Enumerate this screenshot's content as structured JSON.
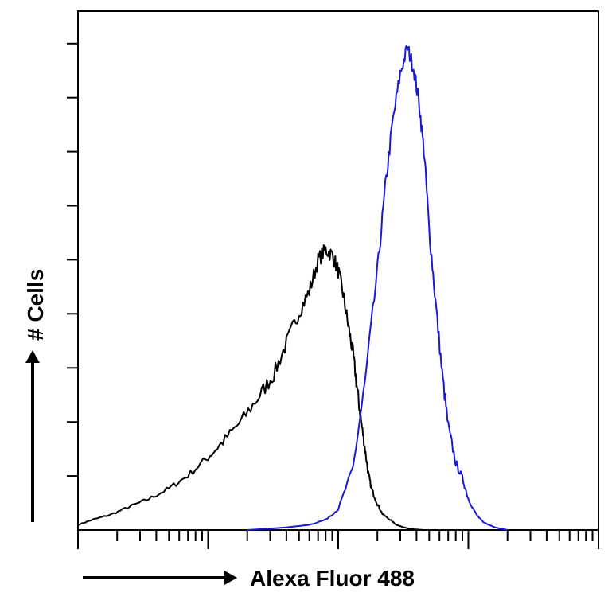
{
  "chart_data": {
    "type": "line",
    "title": "",
    "xlabel": "Alexa Fluor 488",
    "ylabel": "# Cells",
    "x_scale": "log",
    "xlim": [
      1,
      10000
    ],
    "ylim": [
      0,
      100
    ],
    "legend": "none",
    "grid": false,
    "series": [
      {
        "color": "#000000",
        "x": [
          1.0,
          1.3,
          1.8,
          2.5,
          3.5,
          5.0,
          7.0,
          10,
          13,
          18,
          25,
          32,
          40,
          50,
          60,
          70,
          80,
          90,
          100,
          110,
          120,
          130,
          140,
          150,
          160,
          170,
          180,
          200,
          220,
          250,
          280,
          320,
          360,
          400,
          450,
          500,
          560,
          630,
          700
        ],
        "y": [
          1.0,
          2.0,
          3.0,
          4.5,
          6.0,
          8.0,
          10.5,
          14,
          17,
          21,
          26,
          30,
          36,
          42,
          46,
          52,
          54,
          53,
          50,
          45,
          39,
          34,
          27,
          21,
          16,
          11,
          8,
          5,
          3,
          2,
          1,
          0.5,
          0.2,
          0.1,
          0,
          0,
          0,
          0,
          0
        ]
      },
      {
        "color": "#1a1ad6",
        "x": [
          20,
          40,
          60,
          80,
          100,
          130,
          160,
          200,
          230,
          260,
          300,
          340,
          380,
          420,
          460,
          500,
          560,
          630,
          700,
          800,
          900,
          1000,
          1150,
          1300,
          1600,
          2000
        ],
        "y": [
          0,
          0.5,
          1,
          2,
          4,
          12,
          28,
          50,
          66,
          78,
          88,
          93,
          89,
          82,
          72,
          58,
          44,
          30,
          20,
          13,
          10,
          6,
          3,
          1.5,
          0.5,
          0
        ]
      }
    ]
  }
}
